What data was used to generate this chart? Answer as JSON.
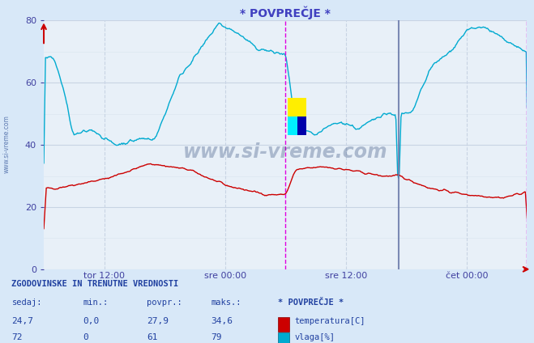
{
  "title": "* POVPREČJE *",
  "bg_color": "#d8e8f8",
  "plot_bg_color": "#e8f0f8",
  "grid_color_major": "#c8d4e4",
  "grid_color_minor": "#dce6f0",
  "ylim": [
    0,
    80
  ],
  "yticks": [
    0,
    20,
    40,
    60,
    80
  ],
  "xlabel_ticks": [
    "tor 12:00",
    "sre 00:00",
    "sre 12:00",
    "čet 00:00"
  ],
  "xlabel_tick_positions": [
    0.125,
    0.375,
    0.625,
    0.875
  ],
  "title_color": "#4040c0",
  "tick_color": "#4040a0",
  "temp_color": "#cc0000",
  "humid_color": "#00aad0",
  "spike_color": "#6878a8",
  "watermark_color": "#1e3a6e",
  "footer_bg": "#ccd8e8",
  "legend_items": [
    {
      "label": "temperatura[C]",
      "color": "#cc0000"
    },
    {
      "label": "vlaga[%]",
      "color": "#00aad0"
    }
  ],
  "stats_header": "ZGODOVINSKE IN TRENUTNE VREDNOSTI",
  "stats_cols": [
    "sedaj:",
    "min.:",
    "povpr.:",
    "maks.:"
  ],
  "stats_temp": [
    "24,7",
    "0,0",
    "27,9",
    "34,6"
  ],
  "stats_humid": [
    "72",
    "0",
    "61",
    "79"
  ],
  "stats_label": "* POVPREČJE *"
}
